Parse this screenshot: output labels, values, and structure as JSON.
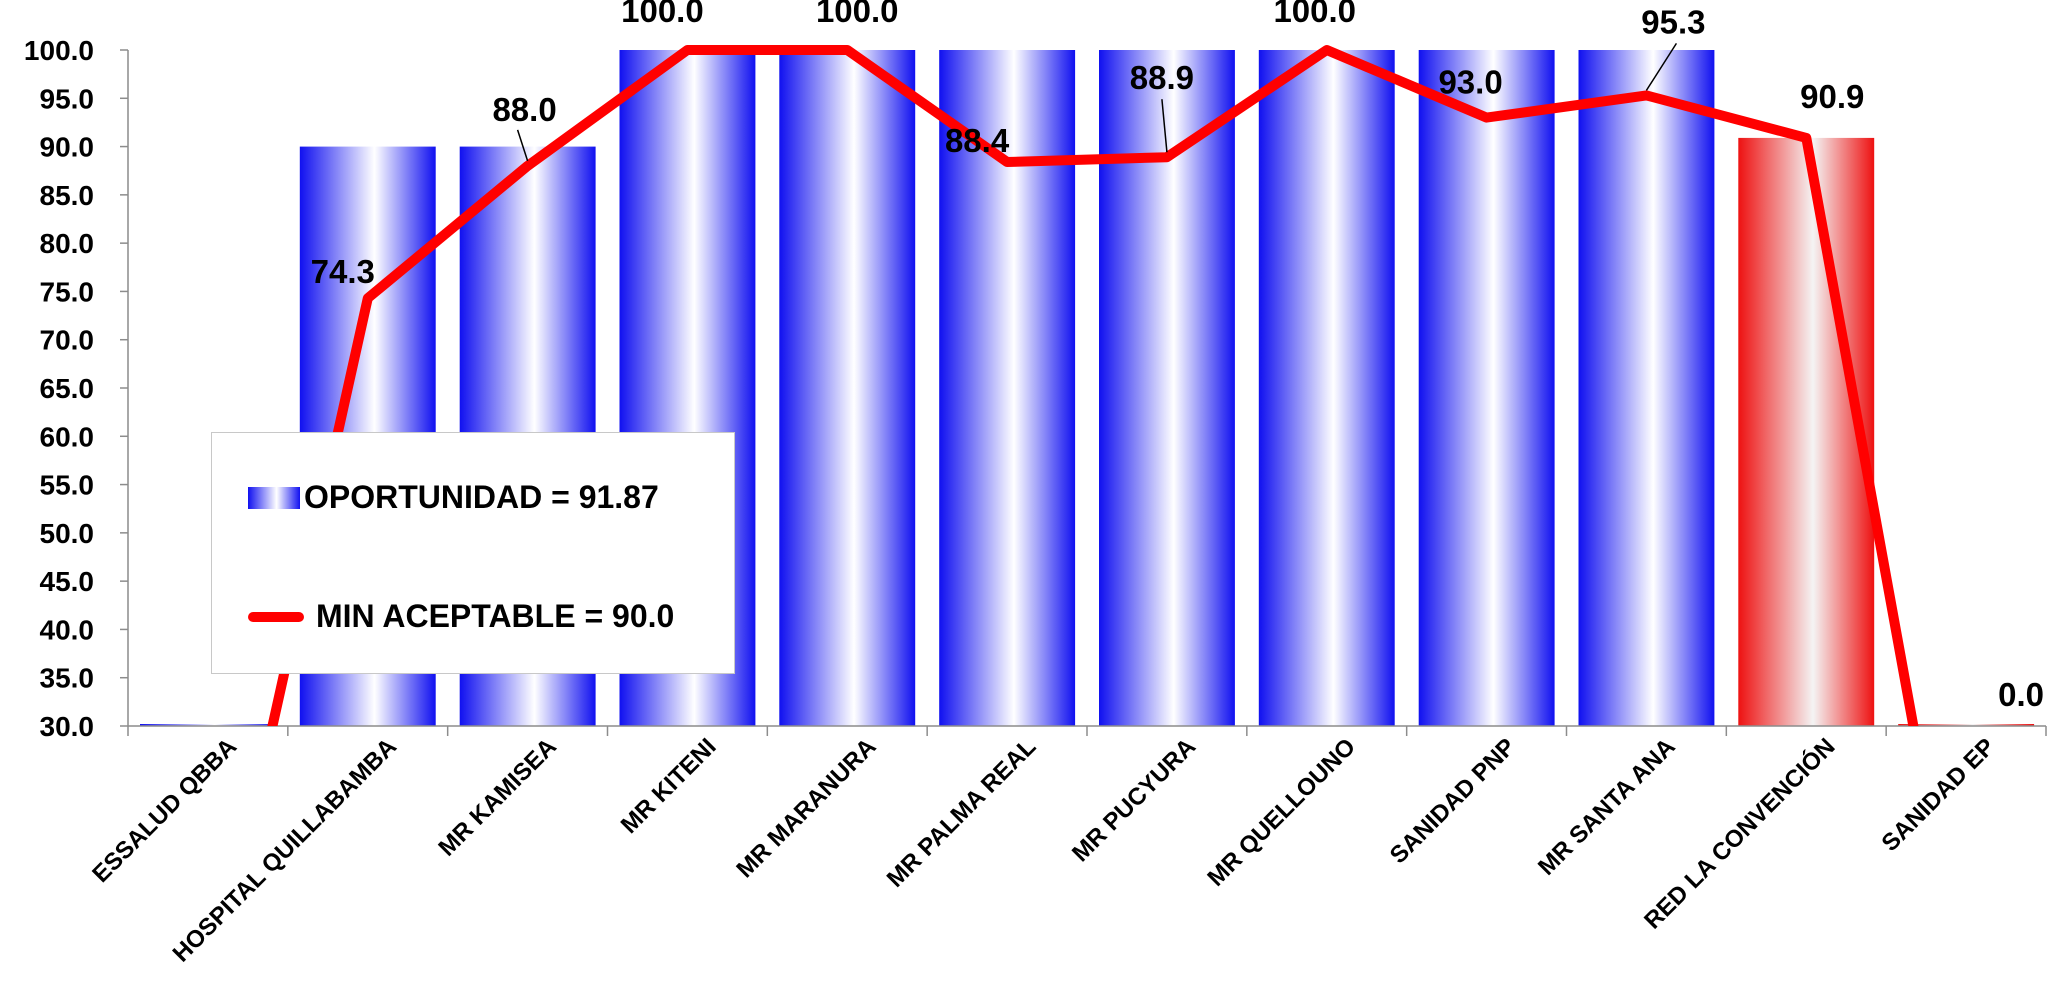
{
  "chart_data": {
    "type": "bar",
    "categories": [
      "ESSALUD QBBA",
      "HOSPITAL QUILLABAMBA",
      "MR KAMISEA",
      "MR KITENI",
      "MR MARANURA",
      "MR PALMA REAL",
      "MR PUCYURA",
      "MR QUELLOUNO",
      "SANIDAD PNP",
      "MR SANTA ANA",
      "RED LA CONVENCIÓN",
      "SANIDAD EP"
    ],
    "series": [
      {
        "kind": "bar",
        "values": [
          30.0,
          90.0,
          90.0,
          100.0,
          100.0,
          100.0,
          100.0,
          100.0,
          100.0,
          100.0,
          90.9,
          30.0
        ],
        "colors": [
          "#1010f0",
          "#1010f0",
          "#1010f0",
          "#1010f0",
          "#1010f0",
          "#1010f0",
          "#1010f0",
          "#1010f0",
          "#1010f0",
          "#1010f0",
          "#ee1111",
          "#ee1111"
        ]
      },
      {
        "kind": "line",
        "values": [
          0.0,
          74.3,
          88.0,
          100.0,
          100.0,
          88.4,
          88.9,
          100.0,
          93.0,
          95.3,
          90.9,
          0.0
        ],
        "color": "#ff0000"
      }
    ],
    "data_labels": [
      "",
      "74.3",
      "88.0",
      "100.0",
      "100.0",
      "88.4",
      "88.9",
      "100.0",
      "93.0",
      "95.3",
      "90.9",
      "0.0"
    ],
    "yticks": [
      "30.0",
      "35.0",
      "40.0",
      "45.0",
      "50.0",
      "55.0",
      "60.0",
      "65.0",
      "70.0",
      "75.0",
      "80.0",
      "85.0",
      "90.0",
      "95.0",
      "100.0"
    ],
    "ylim": [
      30,
      100
    ],
    "xlabel": "",
    "ylabel": "",
    "title": "",
    "grid": false,
    "legend_position": "center-left"
  },
  "legend": {
    "bar_label": "OPORTUNIDAD = 91.87",
    "line_label": "MIN ACEPTABLE = 90.0"
  }
}
